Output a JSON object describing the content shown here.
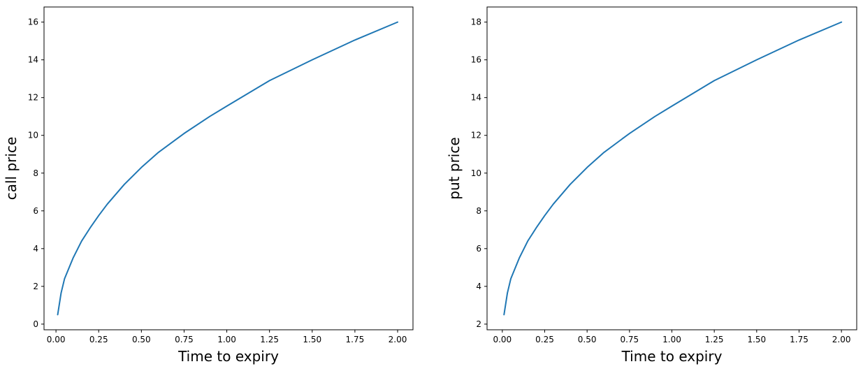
{
  "chart_data": [
    {
      "type": "line",
      "title": "",
      "xlabel": "Time to expiry",
      "ylabel": "call price",
      "xlim": [
        -0.07,
        2.09
      ],
      "ylim": [
        -0.3,
        16.8
      ],
      "xticks": [
        0.0,
        0.25,
        0.5,
        0.75,
        1.0,
        1.25,
        1.5,
        1.75,
        2.0
      ],
      "xtick_labels": [
        "0.00",
        "0.25",
        "0.50",
        "0.75",
        "1.00",
        "1.25",
        "1.50",
        "1.75",
        "2.00"
      ],
      "yticks": [
        0,
        2,
        4,
        6,
        8,
        10,
        12,
        14,
        16
      ],
      "ytick_labels": [
        "0",
        "2",
        "4",
        "6",
        "8",
        "10",
        "12",
        "14",
        "16"
      ],
      "grid": false,
      "series": [
        {
          "color": "#1f77b4",
          "x": [
            0.01,
            0.03,
            0.05,
            0.1,
            0.15,
            0.2,
            0.25,
            0.3,
            0.4,
            0.5,
            0.6,
            0.75,
            0.9,
            1.0,
            1.25,
            1.5,
            1.75,
            2.0
          ],
          "y": [
            0.5,
            1.65,
            2.4,
            3.5,
            4.4,
            5.1,
            5.75,
            6.35,
            7.4,
            8.3,
            9.1,
            10.1,
            11.0,
            11.55,
            12.9,
            14.0,
            15.05,
            16.0
          ]
        }
      ]
    },
    {
      "type": "line",
      "title": "",
      "xlabel": "Time to expiry",
      "ylabel": "put price",
      "xlim": [
        -0.09,
        2.09
      ],
      "ylim": [
        1.7,
        18.8
      ],
      "xticks": [
        0.0,
        0.25,
        0.5,
        0.75,
        1.0,
        1.25,
        1.5,
        1.75,
        2.0
      ],
      "xtick_labels": [
        "0.00",
        "0.25",
        "0.50",
        "0.75",
        "1.00",
        "1.25",
        "1.50",
        "1.75",
        "2.00"
      ],
      "yticks": [
        2,
        4,
        6,
        8,
        10,
        12,
        14,
        16,
        18
      ],
      "ytick_labels": [
        "2",
        "4",
        "6",
        "8",
        "10",
        "12",
        "14",
        "16",
        "18"
      ],
      "grid": false,
      "series": [
        {
          "color": "#1f77b4",
          "x": [
            0.01,
            0.03,
            0.05,
            0.1,
            0.15,
            0.2,
            0.25,
            0.3,
            0.4,
            0.5,
            0.6,
            0.75,
            0.9,
            1.0,
            1.25,
            1.5,
            1.75,
            2.0
          ],
          "y": [
            2.5,
            3.65,
            4.4,
            5.5,
            6.4,
            7.1,
            7.75,
            8.35,
            9.4,
            10.3,
            11.1,
            12.1,
            13.0,
            13.55,
            14.9,
            16.0,
            17.05,
            18.0
          ]
        }
      ]
    }
  ]
}
